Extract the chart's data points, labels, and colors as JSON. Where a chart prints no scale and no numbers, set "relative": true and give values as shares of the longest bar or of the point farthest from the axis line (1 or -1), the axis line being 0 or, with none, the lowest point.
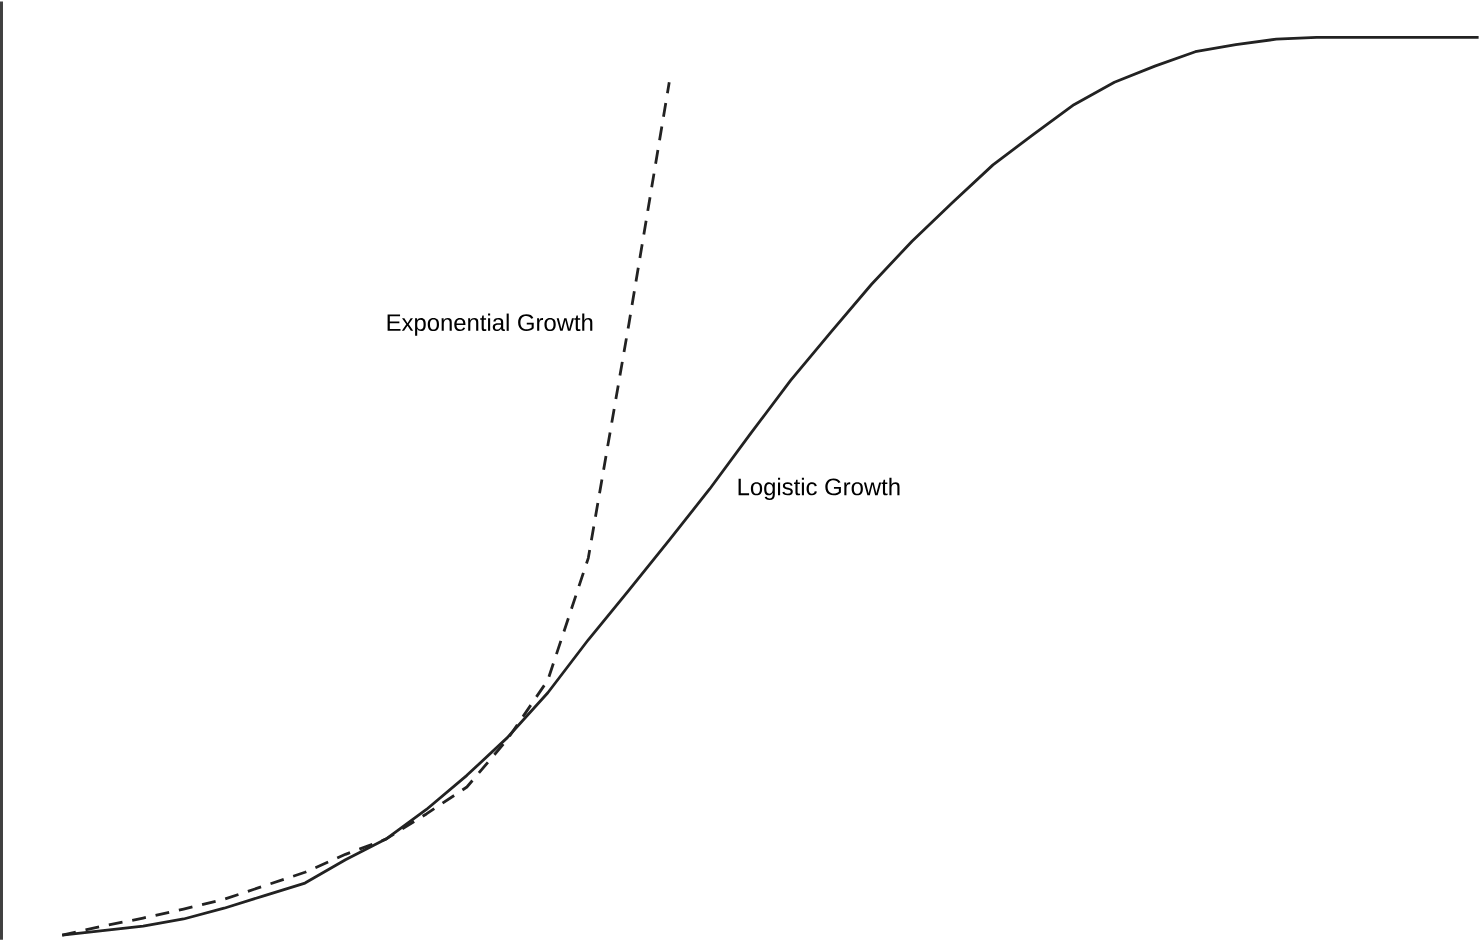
{
  "chart_data": {
    "type": "line",
    "relative": true,
    "legend": false,
    "marker": "none",
    "categories": [
      null,
      null,
      null,
      null,
      null,
      null,
      null,
      null,
      null,
      null,
      null,
      null,
      null,
      null,
      null,
      null,
      null,
      null,
      null,
      null,
      null,
      null,
      null,
      null,
      null,
      null,
      null,
      null,
      null,
      null,
      null,
      null,
      null,
      null,
      null,
      null
    ],
    "series": [
      {
        "name": "Exponential Growth",
        "color": "#222222",
        "line_style": "dashed",
        "values": [
          0,
          0.01,
          0.019,
          0.029,
          0.04,
          0.055,
          0.07,
          0.09,
          0.107,
          0.135,
          0.165,
          0.218,
          0.284,
          0.42,
          0.68,
          0.95,
          null,
          null,
          null,
          null,
          null,
          null,
          null,
          null,
          null,
          null,
          null,
          null,
          null,
          null,
          null,
          null,
          null,
          null,
          null,
          null
        ]
      },
      {
        "name": "Logistic Growth",
        "color": "#222222",
        "line_style": "solid",
        "values": [
          0,
          0.005,
          0.01,
          0.018,
          0.03,
          0.044,
          0.058,
          0.084,
          0.107,
          0.14,
          0.178,
          0.22,
          0.27,
          0.329,
          0.384,
          0.44,
          0.497,
          0.558,
          0.618,
          0.672,
          0.725,
          0.773,
          0.816,
          0.858,
          0.892,
          0.925,
          0.95,
          0.968,
          0.984,
          0.992,
          0.998,
          1,
          1,
          1,
          1,
          1
        ]
      }
    ]
  }
}
